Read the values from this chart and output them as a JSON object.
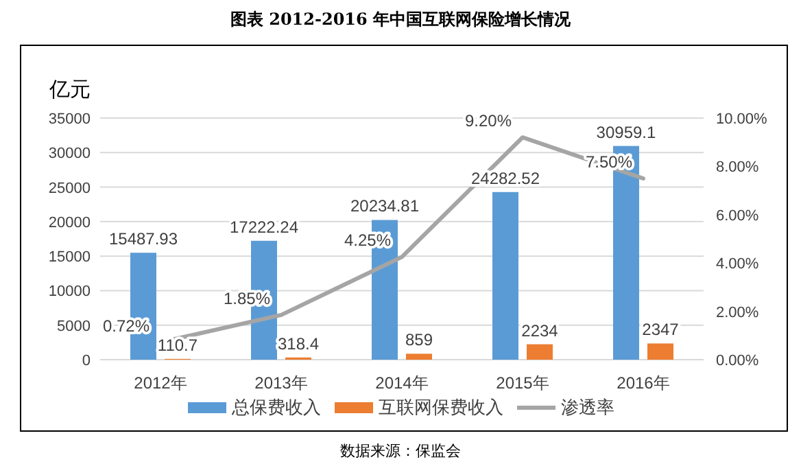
{
  "chart_data": {
    "type": "bar",
    "title": "图表    2012-2016 年中国互联网保险增长情况",
    "ylabel": "亿元",
    "categories": [
      "2012年",
      "2013年",
      "2014年",
      "2015年",
      "2016年"
    ],
    "series": [
      {
        "name": "总保费收入",
        "color": "#5b9bd5",
        "values": [
          15487.93,
          17222.24,
          20234.81,
          24282.52,
          30959.1
        ],
        "value_labels": [
          "15487.93",
          "17222.24",
          "20234.81",
          "24282.52",
          "30959.1"
        ]
      },
      {
        "name": "互联网保费收入",
        "color": "#ed7d31",
        "values": [
          110.7,
          318.4,
          859,
          2234,
          2347
        ],
        "value_labels": [
          "110.7",
          "318.4",
          "859",
          "2234",
          "2347"
        ]
      },
      {
        "name": "渗透率",
        "type": "line",
        "axis": "y2",
        "color": "#a5a5a5",
        "values": [
          0.72,
          1.85,
          4.25,
          9.2,
          7.5
        ],
        "value_labels": [
          "0.72%",
          "1.85%",
          "4.25%",
          "9.20%",
          "7.50%"
        ]
      }
    ],
    "ylim": [
      0,
      35000
    ],
    "yticks": [
      0,
      5000,
      10000,
      15000,
      20000,
      25000,
      30000,
      35000
    ],
    "y2lim": [
      0,
      10
    ],
    "y2ticks": [
      {
        "value": 0,
        "label": "0.00%"
      },
      {
        "value": 2,
        "label": "2.00%"
      },
      {
        "value": 4,
        "label": "4.00%"
      },
      {
        "value": 6,
        "label": "6.00%"
      },
      {
        "value": 8,
        "label": "8.00%"
      },
      {
        "value": 10,
        "label": "10.00%"
      }
    ],
    "grid": "y",
    "legend": "bottom",
    "annotations": [
      "数据来源：保监会"
    ]
  }
}
